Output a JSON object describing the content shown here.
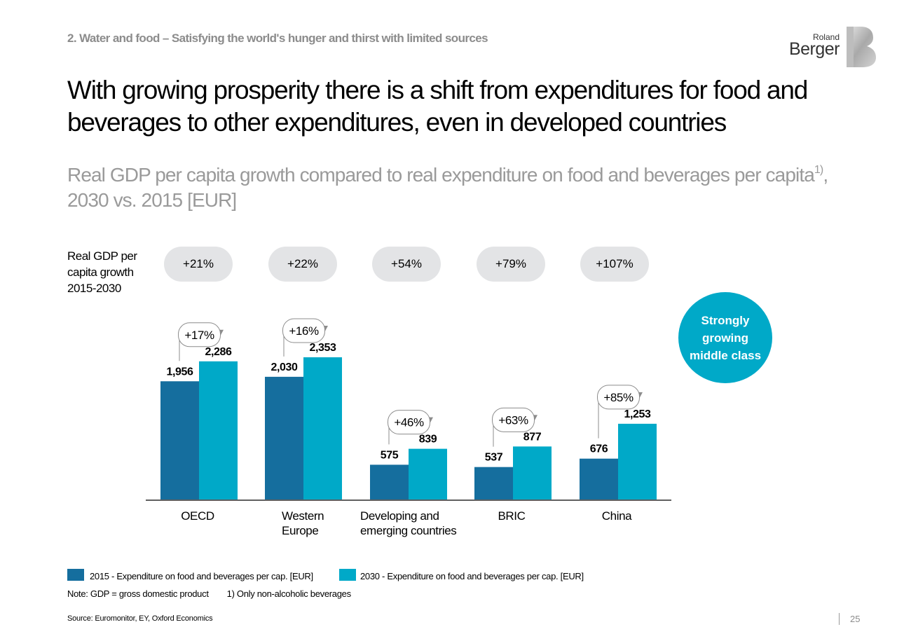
{
  "header": {
    "section_title": "2. Water and food – Satisfying the world's hunger and thirst with limited sources",
    "logo_top": "Roland",
    "logo_bottom": "Berger"
  },
  "headline": "With growing prosperity there is a shift from expenditures for food and beverages to other expenditures, even in developed countries",
  "subtitle": {
    "main": "Real GDP per capita growth compared to real expenditure on food and beverages per capita",
    "footnote_ref": "1)",
    "tail": ", 2030 vs. 2015 [EUR]"
  },
  "gdp_growth_label": "Real GDP per capita growth 2015-2030",
  "middle_class_label": "Strongly growing middle class",
  "colors": {
    "2015": "#156e9e",
    "2030": "#00a9c8",
    "pill": "#e3e4e6",
    "arrow": "#8c8c8c"
  },
  "chart_data": {
    "type": "bar",
    "categories": [
      [
        "OECD"
      ],
      [
        "Western",
        "Europe"
      ],
      [
        "Developing and",
        "emerging countries"
      ],
      [
        "BRIC"
      ],
      [
        "China"
      ]
    ],
    "series": [
      {
        "name": "2015 - Expenditure on food and beverages per cap. [EUR]",
        "values": [
          1956,
          2030,
          575,
          537,
          676
        ],
        "labels": [
          "1,956",
          "2,030",
          "575",
          "537",
          "676"
        ]
      },
      {
        "name": "2030 - Expenditure on food and beverages per cap. [EUR]",
        "values": [
          2286,
          2353,
          839,
          877,
          1253
        ],
        "labels": [
          "2,286",
          "2,353",
          "839",
          "877",
          "1,253"
        ]
      }
    ],
    "expenditure_growth": [
      "+17%",
      "+16%",
      "+46%",
      "+63%",
      "+85%"
    ],
    "gdp_growth": [
      "+21%",
      "+22%",
      "+54%",
      "+79%",
      "+107%"
    ],
    "ylim": [
      0,
      2353
    ],
    "grid": false,
    "legend_position": "bottom"
  },
  "legend": {
    "item_2015": "2015 - Expenditure on food and beverages per cap. [EUR]",
    "item_2030": "2030 - Expenditure on food and beverages per cap. [EUR]"
  },
  "notes": {
    "gdp": "Note: GDP = gross domestic product",
    "footnote": "1) Only non-alcoholic beverages"
  },
  "source": "Source: Euromonitor, EY, Oxford Economics",
  "page_number": "25"
}
